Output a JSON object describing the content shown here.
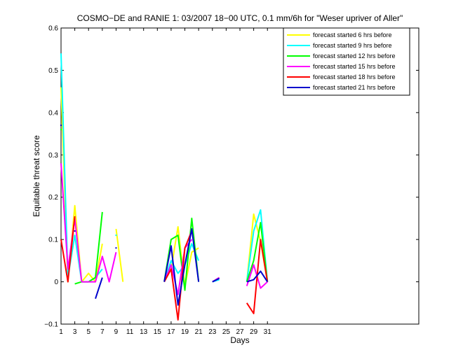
{
  "chart_data": {
    "type": "line",
    "title": "COSMO−DE and RANIE 1: 03/2007 18−00 UTC, 0.1 mm/6h for \"Weser upriver of Aller\"",
    "xlabel": "Days",
    "ylabel": "Equitable threat score",
    "xlim": [
      1,
      53
    ],
    "ylim": [
      -0.1,
      0.6
    ],
    "x_ticks": [
      1,
      3,
      5,
      7,
      9,
      11,
      13,
      15,
      17,
      19,
      21,
      23,
      25,
      27,
      29,
      31
    ],
    "y_ticks": [
      -0.1,
      0,
      0.1,
      0.2,
      0.3,
      0.4,
      0.5,
      0.6
    ],
    "y_tick_labels": [
      "−0.1",
      "0",
      "0.1",
      "0.2",
      "0.3",
      "0.4",
      "0.5",
      "0.6"
    ],
    "grid": false,
    "legend_position": "top-right",
    "series": [
      {
        "name": "forecast started 6 hrs before",
        "color": "#ffff00",
        "points": [
          [
            1,
            0.46
          ],
          [
            2,
            0.0
          ],
          [
            3,
            0.18
          ],
          [
            4,
            0.0
          ],
          [
            5,
            0.02
          ],
          [
            6,
            0.0
          ],
          [
            7,
            0.09
          ],
          null,
          [
            9,
            0.125
          ],
          [
            10,
            0.0
          ],
          null,
          [
            16,
            0.0
          ],
          [
            17,
            0.03
          ],
          [
            18,
            0.13
          ],
          [
            19,
            -0.01
          ],
          [
            20,
            0.07
          ],
          [
            21,
            0.08
          ],
          null,
          [
            23,
            0.0
          ],
          [
            24,
            0.01
          ],
          null,
          [
            28,
            0.0
          ],
          [
            29,
            0.16
          ],
          [
            30,
            0.095
          ],
          [
            31,
            0.0
          ]
        ]
      },
      {
        "name": "forecast started 9 hrs before",
        "color": "#00ffff",
        "points": [
          [
            1,
            0.54
          ],
          [
            2,
            0.01
          ],
          [
            3,
            0.11
          ],
          [
            4,
            0.0
          ],
          [
            5,
            0.0
          ],
          [
            6,
            0.01
          ],
          [
            7,
            0.03
          ],
          null,
          [
            9,
            0.11
          ],
          null,
          [
            16,
            0.0
          ],
          [
            17,
            0.05
          ],
          [
            18,
            0.02
          ],
          [
            19,
            0.04
          ],
          [
            20,
            0.09
          ],
          [
            21,
            0.05
          ],
          null,
          [
            23,
            0.0
          ],
          [
            24,
            0.005
          ],
          null,
          [
            28,
            0.0
          ],
          [
            29,
            0.12
          ],
          [
            30,
            0.17
          ],
          [
            31,
            0.0
          ]
        ]
      },
      {
        "name": "forecast started 12 hrs before",
        "color": "#00ff00",
        "points": [
          [
            1,
            0.36
          ],
          null,
          [
            3,
            -0.005
          ],
          [
            4,
            0.0
          ],
          [
            5,
            0.0
          ],
          [
            6,
            0.01
          ],
          [
            7,
            0.165
          ],
          null,
          [
            16,
            0.0
          ],
          [
            17,
            0.1
          ],
          [
            18,
            0.11
          ],
          [
            19,
            -0.02
          ],
          [
            20,
            0.15
          ],
          [
            21,
            0.0
          ],
          null,
          [
            28,
            0.0
          ],
          [
            29,
            0.05
          ],
          [
            30,
            0.14
          ],
          [
            31,
            0.0
          ]
        ]
      },
      {
        "name": "forecast started 15 hrs before",
        "color": "#ff00ff",
        "points": [
          [
            1,
            0.28
          ],
          [
            2,
            0.03
          ],
          [
            3,
            0.15
          ],
          [
            4,
            0.0
          ],
          [
            5,
            0.0
          ],
          [
            6,
            0.0
          ],
          [
            7,
            0.06
          ],
          [
            8,
            0.0
          ],
          [
            9,
            0.07
          ],
          null,
          [
            16,
            0.0
          ],
          [
            17,
            0.04
          ],
          [
            18,
            -0.03
          ],
          [
            19,
            0.08
          ],
          [
            20,
            0.1
          ],
          null,
          [
            23,
            0.0
          ],
          [
            24,
            0.01
          ],
          null,
          [
            28,
            -0.01
          ],
          [
            29,
            0.04
          ],
          [
            30,
            -0.015
          ],
          [
            31,
            0.0
          ]
        ]
      },
      {
        "name": "forecast started 18 hrs before",
        "color": "#ff0000",
        "points": [
          [
            1,
            0.1
          ],
          [
            2,
            0.0
          ],
          [
            3,
            0.155
          ],
          null,
          [
            16,
            0.0
          ],
          [
            17,
            0.03
          ],
          [
            18,
            -0.09
          ],
          [
            19,
            0.08
          ],
          [
            20,
            0.12
          ],
          null,
          [
            28,
            -0.05
          ],
          [
            29,
            -0.075
          ],
          [
            30,
            0.1
          ],
          [
            31,
            0.0
          ]
        ]
      },
      {
        "name": "forecast started 21 hrs before",
        "color": "#0000cc",
        "points": [
          [
            1,
            0.37
          ],
          null,
          [
            3,
            0.12
          ],
          null,
          [
            6,
            -0.04
          ],
          [
            7,
            0.01
          ],
          null,
          [
            9,
            0.08
          ],
          null,
          [
            16,
            0.0
          ],
          [
            17,
            0.085
          ],
          [
            18,
            -0.055
          ],
          [
            19,
            0.04
          ],
          [
            20,
            0.125
          ],
          [
            21,
            0.0
          ],
          null,
          [
            23,
            0.0
          ],
          [
            24,
            0.008
          ],
          null,
          [
            28,
            0.0
          ],
          [
            29,
            0.005
          ],
          [
            30,
            0.025
          ],
          [
            31,
            0.0
          ]
        ]
      }
    ]
  }
}
